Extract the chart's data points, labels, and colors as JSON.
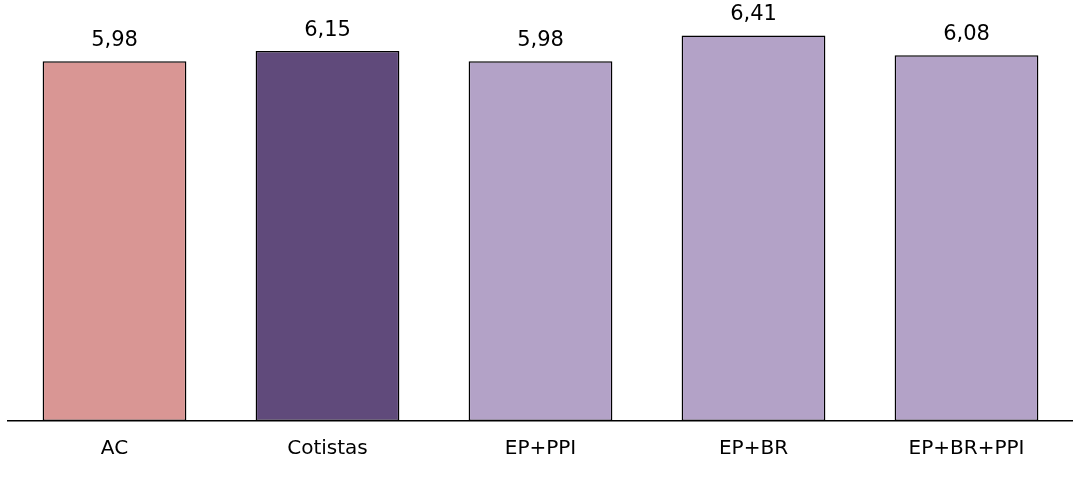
{
  "chart_data": {
    "type": "bar",
    "categories": [
      "AC",
      "Cotistas",
      "EP+PPI",
      "EP+BR",
      "EP+BR+PPI"
    ],
    "values": [
      5.98,
      6.15,
      5.98,
      6.41,
      6.08
    ],
    "colors": [
      "#d99694",
      "#604a7b",
      "#b3a2c7",
      "#b3a2c7",
      "#b3a2c7"
    ],
    "value_labels": [
      "5,98",
      "6,15",
      "5,98",
      "6,41",
      "6,08"
    ],
    "tick_labels": "x",
    "grid": false,
    "legend": false
  }
}
